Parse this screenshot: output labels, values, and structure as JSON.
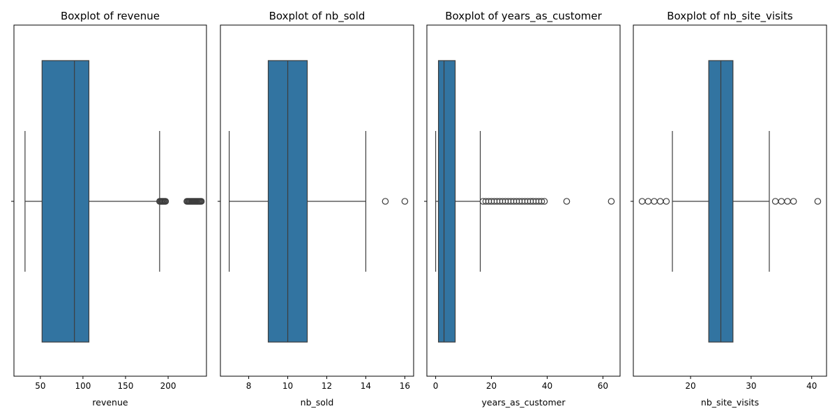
{
  "colors": {
    "box_fill": "#3274a1",
    "line": "#3d3d3d",
    "flier_edge": "#3d3d3d",
    "spine": "#000000",
    "background": "#ffffff"
  },
  "chart_data": [
    {
      "type": "boxplot",
      "orientation": "horizontal",
      "title": "Boxplot of revenue",
      "xlabel": "revenue",
      "xlim": [
        19,
        245
      ],
      "xticks": [
        50,
        100,
        150,
        200
      ],
      "grid": false,
      "stats": {
        "whisker_low": 32,
        "q1": 52,
        "median": 90,
        "q3": 107,
        "whisker_high": 190
      },
      "outliers": [
        190,
        191,
        192,
        193,
        194,
        195,
        196,
        197,
        222,
        223,
        224,
        225,
        226,
        227,
        228,
        229,
        230,
        231,
        232,
        233,
        234,
        235,
        236,
        237,
        238,
        239
      ]
    },
    {
      "type": "boxplot",
      "orientation": "horizontal",
      "title": "Boxplot of nb_sold",
      "xlabel": "nb_sold",
      "xlim": [
        6.55,
        16.45
      ],
      "xticks": [
        8,
        10,
        12,
        14,
        16
      ],
      "grid": false,
      "stats": {
        "whisker_low": 7,
        "q1": 9,
        "median": 10,
        "q3": 11,
        "whisker_high": 14
      },
      "outliers": [
        15,
        16
      ]
    },
    {
      "type": "boxplot",
      "orientation": "horizontal",
      "title": "Boxplot of years_as_customer",
      "xlabel": "years_as_customer",
      "xlim": [
        -3.15,
        66.15
      ],
      "xticks": [
        0,
        20,
        40,
        60
      ],
      "grid": false,
      "stats": {
        "whisker_low": 0,
        "q1": 1,
        "median": 3,
        "q3": 7,
        "whisker_high": 16
      },
      "outliers": [
        17,
        18,
        19,
        20,
        21,
        22,
        23,
        24,
        25,
        26,
        27,
        28,
        29,
        30,
        31,
        32,
        33,
        34,
        35,
        36,
        37,
        38,
        39,
        47,
        63
      ]
    },
    {
      "type": "boxplot",
      "orientation": "horizontal",
      "title": "Boxplot of nb_site_visits",
      "xlabel": "nb_site_visits",
      "xlim": [
        10.55,
        42.45
      ],
      "xticks": [
        20,
        30,
        40
      ],
      "grid": false,
      "stats": {
        "whisker_low": 17,
        "q1": 23,
        "median": 25,
        "q3": 27,
        "whisker_high": 33
      },
      "outliers": [
        12,
        13,
        14,
        15,
        16,
        34,
        35,
        36,
        37,
        41
      ]
    }
  ]
}
